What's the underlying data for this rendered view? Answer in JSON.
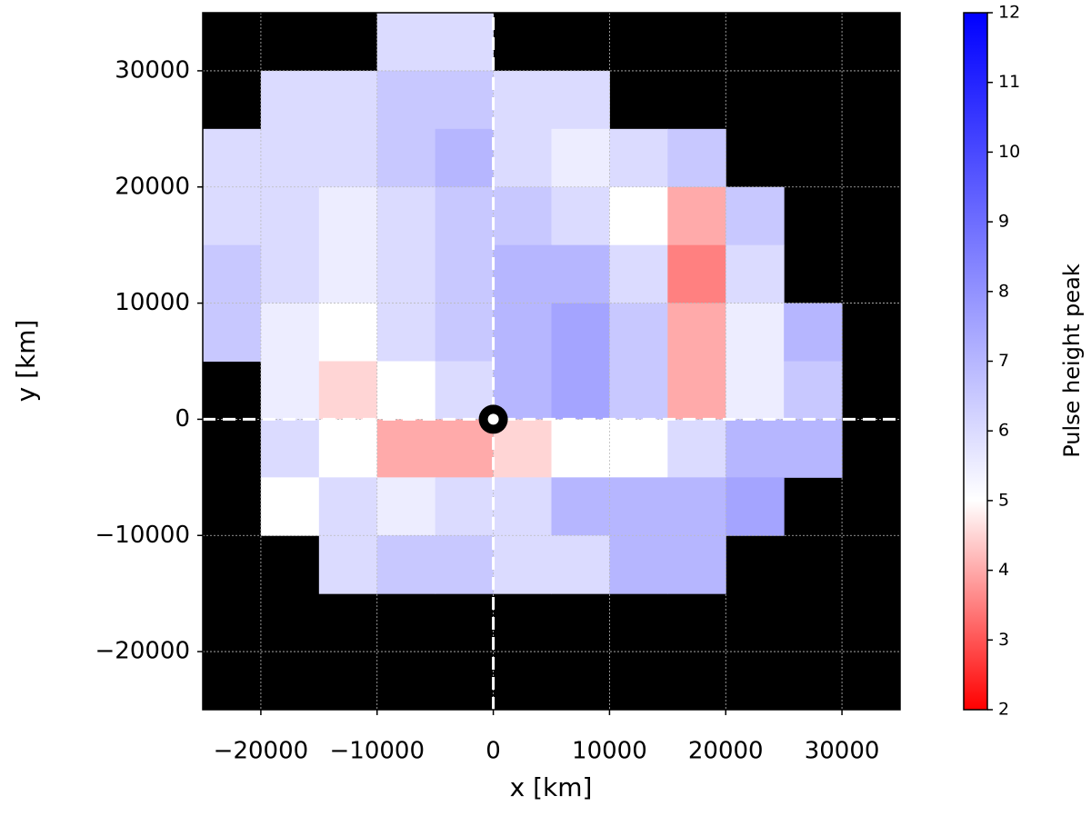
{
  "chart_data": {
    "type": "heatmap",
    "x_label": "x [km]",
    "y_label": "y [km]",
    "colorbar_label": "Pulse height peak",
    "xlim": [
      -25000,
      35000
    ],
    "ylim": [
      -25000,
      35000
    ],
    "xticks": [
      {
        "value": -20000,
        "label": "−20000"
      },
      {
        "value": -10000,
        "label": "−10000"
      },
      0,
      10000,
      20000,
      30000
    ],
    "yticks": [
      {
        "value": -20000,
        "label": "−20000"
      },
      {
        "value": -10000,
        "label": "−10000"
      },
      0,
      10000,
      20000,
      30000
    ],
    "x": [
      -22500,
      -17500,
      -12500,
      -7500,
      -2500,
      2500,
      7500,
      12500,
      17500,
      22500,
      27500,
      32500
    ],
    "y": [
      32500,
      27500,
      22500,
      17500,
      12500,
      7500,
      2500,
      -2500,
      -7500,
      -12500,
      -17500,
      -22500
    ],
    "z": [
      [
        null,
        null,
        null,
        6,
        6,
        null,
        null,
        null,
        null,
        null,
        null,
        null
      ],
      [
        null,
        6,
        6,
        6.5,
        6.5,
        6,
        6,
        null,
        null,
        null,
        null,
        null
      ],
      [
        6,
        6,
        6,
        6.5,
        7,
        6,
        5.5,
        6,
        6.5,
        null,
        null,
        null
      ],
      [
        6,
        6,
        5.5,
        6,
        6.5,
        6.5,
        6,
        5,
        4,
        6.5,
        null,
        null
      ],
      [
        6.5,
        6,
        5.5,
        6,
        6.5,
        7,
        7,
        6,
        3.5,
        6,
        null,
        null
      ],
      [
        6.5,
        5.5,
        5,
        6,
        6.5,
        7,
        7.5,
        6.5,
        4,
        5.5,
        7,
        null
      ],
      [
        null,
        5.5,
        4.5,
        5,
        6,
        7,
        7.5,
        6.5,
        4,
        5.5,
        6.5,
        null
      ],
      [
        null,
        6,
        5,
        4,
        4,
        4.5,
        5,
        5,
        6,
        7,
        7,
        null
      ],
      [
        null,
        5,
        6,
        5.5,
        6,
        6,
        7,
        7,
        7,
        7.5,
        null,
        null
      ],
      [
        null,
        null,
        6,
        6.5,
        6.5,
        6,
        6,
        7,
        7,
        null,
        null,
        null
      ],
      [
        null,
        null,
        null,
        null,
        null,
        null,
        null,
        null,
        null,
        null,
        null,
        null
      ],
      [
        null,
        null,
        null,
        null,
        null,
        null,
        null,
        null,
        null,
        null,
        null,
        null
      ]
    ],
    "zlim": [
      2,
      12
    ],
    "zticks": [
      2,
      3,
      4,
      5,
      6,
      7,
      8,
      9,
      10,
      11,
      12
    ],
    "colormap": [
      {
        "value": 2,
        "color": "#ff0000"
      },
      {
        "value": 5,
        "color": "#ffffff"
      },
      {
        "value": 12,
        "color": "#0000ff"
      }
    ],
    "background": "#000000",
    "grid": true
  }
}
